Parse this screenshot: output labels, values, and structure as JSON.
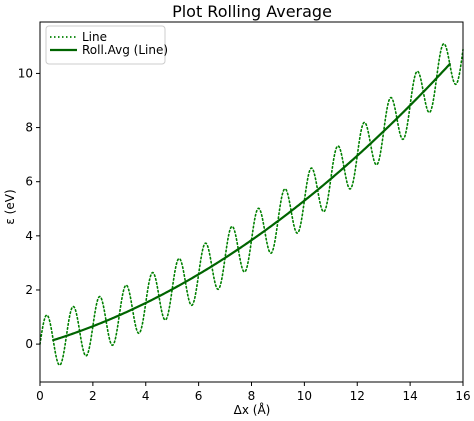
{
  "chart_data": {
    "type": "line",
    "title": "Plot Rolling Average",
    "xlabel": "Δx (Å)",
    "ylabel": "ε (eV)",
    "xlim": [
      0,
      16
    ],
    "ylim": [
      -1.4,
      11.9
    ],
    "xticks": [
      0,
      2,
      4,
      6,
      8,
      10,
      12,
      14,
      16
    ],
    "yticks": [
      0,
      2,
      4,
      6,
      8,
      10
    ],
    "grid": false,
    "legend_position": "top-left",
    "series": [
      {
        "name": "Line",
        "style": "dotted",
        "color": "#008000",
        "function": "0.025*x^2 + 0.28*x + 1.0*sin(2*pi*x/1.0)",
        "x_range": [
          0,
          16
        ],
        "points": [
          {
            "x": 0.0,
            "y": 0.0
          },
          {
            "x": 0.25,
            "y": 1.0
          },
          {
            "x": 0.75,
            "y": -0.8
          },
          {
            "x": 1.25,
            "y": 1.4
          },
          {
            "x": 1.75,
            "y": -0.4
          },
          {
            "x": 2.25,
            "y": 1.8
          },
          {
            "x": 2.75,
            "y": 0.0
          },
          {
            "x": 3.25,
            "y": 2.4
          },
          {
            "x": 3.75,
            "y": 0.6
          },
          {
            "x": 4.25,
            "y": 2.9
          },
          {
            "x": 4.75,
            "y": 1.2
          },
          {
            "x": 5.25,
            "y": 3.5
          },
          {
            "x": 5.75,
            "y": 1.9
          },
          {
            "x": 6.25,
            "y": 4.2
          },
          {
            "x": 6.75,
            "y": 2.6
          },
          {
            "x": 7.25,
            "y": 4.9
          },
          {
            "x": 7.75,
            "y": 3.3
          },
          {
            "x": 8.25,
            "y": 5.6
          },
          {
            "x": 8.75,
            "y": 4.1
          },
          {
            "x": 9.25,
            "y": 6.4
          },
          {
            "x": 9.75,
            "y": 4.9
          },
          {
            "x": 10.25,
            "y": 7.2
          },
          {
            "x": 10.75,
            "y": 5.6
          },
          {
            "x": 11.25,
            "y": 8.0
          },
          {
            "x": 11.75,
            "y": 6.4
          },
          {
            "x": 12.25,
            "y": 8.8
          },
          {
            "x": 12.75,
            "y": 7.2
          },
          {
            "x": 13.25,
            "y": 9.6
          },
          {
            "x": 13.75,
            "y": 8.1
          },
          {
            "x": 14.25,
            "y": 10.5
          },
          {
            "x": 14.75,
            "y": 9.0
          },
          {
            "x": 15.25,
            "y": 11.3
          },
          {
            "x": 15.75,
            "y": 9.8
          },
          {
            "x": 16.0,
            "y": 11.0
          }
        ]
      },
      {
        "name": "Roll.Avg (Line)",
        "style": "solid",
        "color": "#006400",
        "function": "0.025*x^2 + 0.28*x",
        "x_range": [
          0.5,
          15.5
        ],
        "points": [
          {
            "x": 0.5,
            "y": 0.15
          },
          {
            "x": 2.0,
            "y": 0.66
          },
          {
            "x": 4.0,
            "y": 1.52
          },
          {
            "x": 6.0,
            "y": 2.58
          },
          {
            "x": 8.0,
            "y": 3.84
          },
          {
            "x": 10.0,
            "y": 5.3
          },
          {
            "x": 12.0,
            "y": 6.96
          },
          {
            "x": 14.0,
            "y": 8.82
          },
          {
            "x": 15.5,
            "y": 10.35
          }
        ]
      }
    ]
  }
}
